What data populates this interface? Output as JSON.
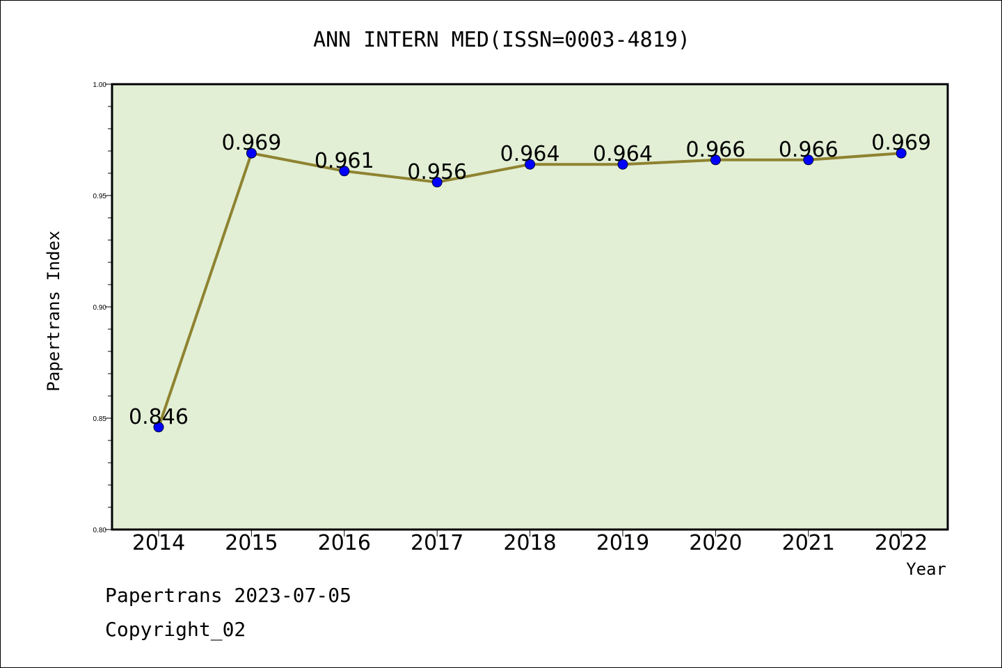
{
  "chart_data": {
    "type": "line",
    "title": "ANN INTERN MED(ISSN=0003-4819)",
    "xlabel": "Year",
    "ylabel": "Papertrans Index",
    "categories": [
      "2014",
      "2015",
      "2016",
      "2017",
      "2018",
      "2019",
      "2020",
      "2021",
      "2022"
    ],
    "series": [
      {
        "values": [
          0.846,
          0.969,
          0.961,
          0.956,
          0.964,
          0.964,
          0.966,
          0.966,
          0.969
        ],
        "data_labels": [
          "0.846",
          "0.969",
          "0.961",
          "0.956",
          "0.964",
          "0.964",
          "0.966",
          "0.966",
          "0.969"
        ]
      }
    ],
    "ylim": [
      0.8,
      1.0
    ],
    "yticks": [
      "0.80",
      "0.85",
      "0.90",
      "0.95",
      "1.00"
    ],
    "ytick_values": [
      0.8,
      0.85,
      0.9,
      0.95,
      1.0
    ],
    "grid": false,
    "legend": "none",
    "colors": {
      "plot_background": "#e2efd5",
      "line": "#8f8331",
      "marker": "#0000ff"
    }
  },
  "footer": {
    "line1": "Papertrans 2023-07-05",
    "line2": "Copyright_02"
  }
}
